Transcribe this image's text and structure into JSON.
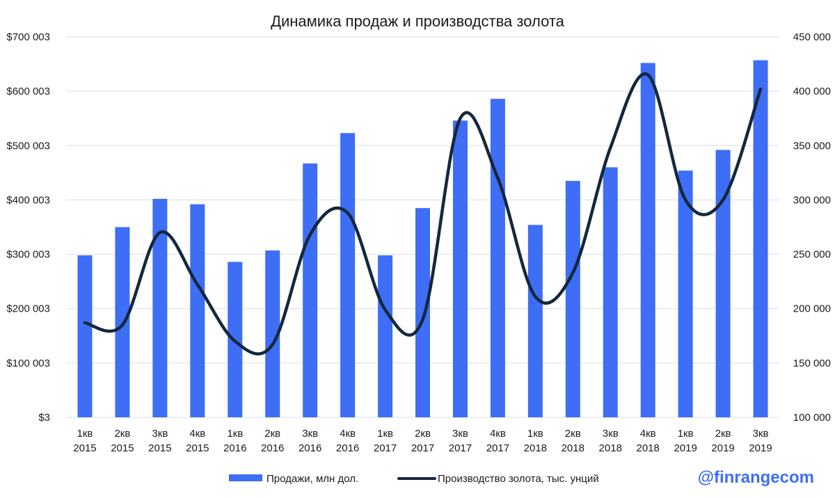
{
  "chart_data": {
    "type": "bar",
    "title": "Динамика продаж и производства золота",
    "categories": [
      "1кв 2015",
      "2кв 2015",
      "3кв 2015",
      "4кв 2015",
      "1кв 2016",
      "2кв 2016",
      "3кв 2016",
      "4кв 2016",
      "1кв 2017",
      "2кв 2017",
      "3кв 2017",
      "4кв 2017",
      "1кв 2018",
      "2кв 2018",
      "3кв 2018",
      "4кв 2018",
      "1кв 2019",
      "2кв 2019",
      "3кв 2019"
    ],
    "y_left": {
      "ylim": [
        3,
        700003
      ],
      "ticks": [
        3,
        100003,
        200003,
        300003,
        400003,
        500003,
        600003,
        700003
      ],
      "tick_labels": [
        "$3",
        "$100 003",
        "$200 003",
        "$300 003",
        "$400 003",
        "$500 003",
        "$600 003",
        "$700 003"
      ]
    },
    "y_right": {
      "ylim": [
        100000,
        450000
      ],
      "ticks": [
        100000,
        150000,
        200000,
        250000,
        300000,
        350000,
        400000,
        450000
      ],
      "tick_labels": [
        "100 000",
        "150 000",
        "200 000",
        "250 000",
        "300 000",
        "350 000",
        "400 000",
        "450 000"
      ]
    },
    "series": [
      {
        "name": "Продажи, млн дол.",
        "type": "bar",
        "axis": "left",
        "color": "#3d6ef5",
        "values": [
          298000,
          350000,
          402000,
          392000,
          286000,
          307000,
          467000,
          523000,
          298000,
          385000,
          546000,
          586000,
          354000,
          435000,
          460000,
          652000,
          454000,
          492000,
          657000
        ]
      },
      {
        "name": "Производство золота, тыс. унций",
        "type": "line",
        "axis": "right",
        "color": "#14273d",
        "smooth": true,
        "values": [
          187000,
          185000,
          270000,
          222000,
          170000,
          167000,
          268000,
          288000,
          199000,
          190000,
          375000,
          320000,
          211000,
          233000,
          348000,
          415000,
          300000,
          300000,
          402000
        ]
      }
    ],
    "grid": true,
    "legend": "bottom"
  },
  "watermark": "@finrangecom"
}
